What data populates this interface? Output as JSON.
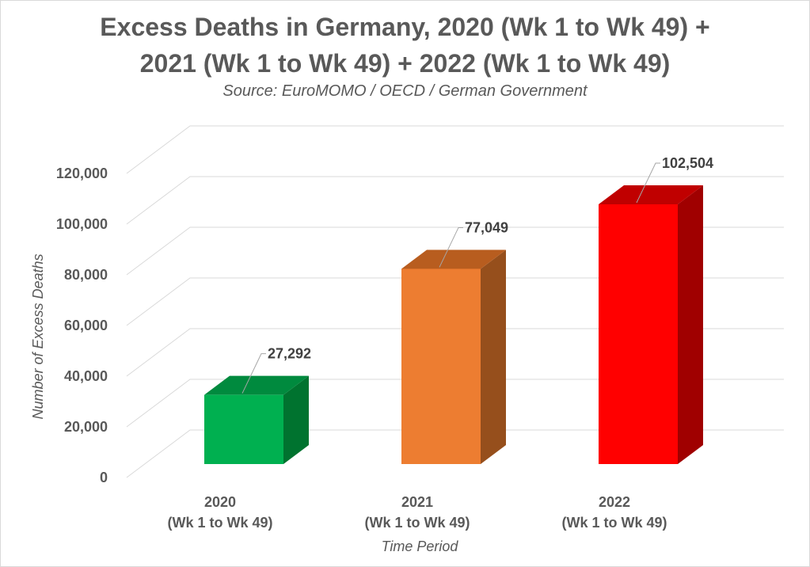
{
  "chart_data": {
    "type": "bar",
    "title_line1": "Excess Deaths in Germany, 2020 (Wk 1 to Wk 49) +",
    "title_line2": "2021 (Wk 1 to Wk 49) + 2022 (Wk 1 to Wk 49)",
    "subtitle": "Source: EuroMOMO / OECD / German Government",
    "xlabel": "Time Period",
    "ylabel": "Number of Excess Deaths",
    "ylim": [
      0,
      120000
    ],
    "yticks": [
      0,
      20000,
      40000,
      60000,
      80000,
      100000,
      120000
    ],
    "ytick_labels": [
      "0",
      "20,000",
      "40,000",
      "60,000",
      "80,000",
      "100,000",
      "120,000"
    ],
    "grid": true,
    "legend": "none",
    "categories": [
      {
        "line1": "2020",
        "line2": "(Wk 1 to Wk 49)"
      },
      {
        "line1": "2021",
        "line2": "(Wk 1 to Wk 49)"
      },
      {
        "line1": "2022",
        "line2": "(Wk 1 to Wk 49)"
      }
    ],
    "values": [
      27292,
      77049,
      102504
    ],
    "value_labels": [
      "27,292",
      "77,049",
      "102,504"
    ],
    "bar_colors": [
      {
        "front": "#00b050",
        "top": "#008a3e",
        "side": "#00732f"
      },
      {
        "front": "#ed7d31",
        "top": "#b85d1f",
        "side": "#964f1c"
      },
      {
        "front": "#ff0000",
        "top": "#c00000",
        "side": "#a00000"
      }
    ]
  }
}
